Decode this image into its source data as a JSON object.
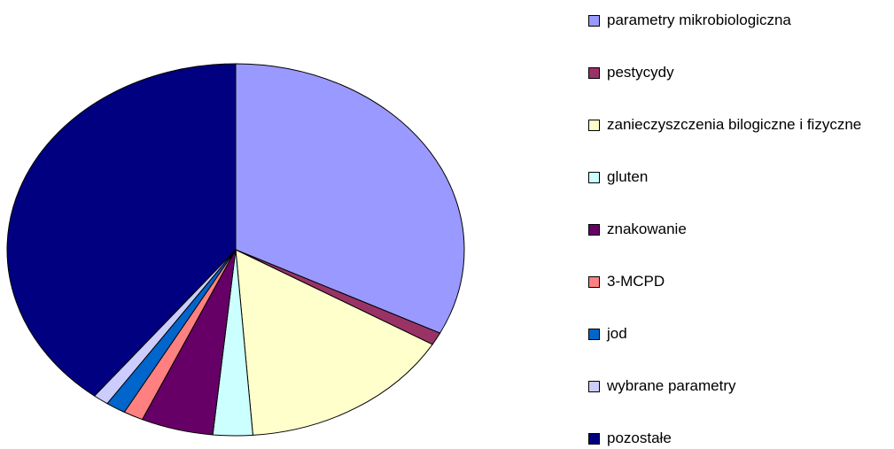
{
  "chart_data": {
    "type": "pie",
    "categories": [
      "parametry mikrobiologiczna",
      "pestycydy",
      "zanieczyszczenia bilogiczne i fizyczne",
      "gluten",
      "znakowanie",
      "3-MCPD",
      "jod",
      "wybrane parametry",
      "pozostałe"
    ],
    "values": [
      32.4,
      1.1,
      15.3,
      2.8,
      5.1,
      1.4,
      1.4,
      1.1,
      39.4
    ],
    "colors": [
      "#9999ff",
      "#993366",
      "#ffffcc",
      "#ccffff",
      "#660066",
      "#ff8080",
      "#0066cc",
      "#ccccff",
      "#000080"
    ],
    "legend": "right"
  }
}
